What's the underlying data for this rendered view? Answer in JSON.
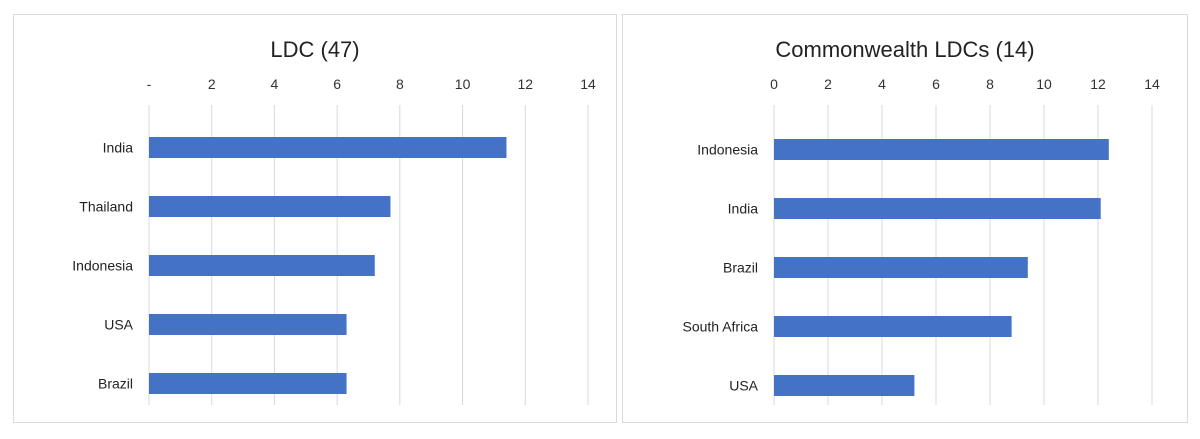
{
  "chart_data": [
    {
      "type": "bar",
      "orientation": "horizontal",
      "title": "LDC (47)",
      "categories": [
        "India",
        "Thailand",
        "Indonesia",
        "USA",
        "Brazil"
      ],
      "values": [
        11.4,
        7.7,
        7.2,
        6.3,
        6.3
      ],
      "xlim": [
        0,
        14
      ],
      "xticks": [
        0,
        2,
        4,
        6,
        8,
        10,
        12,
        14
      ],
      "xtick_labels": [
        "-",
        "2",
        "4",
        "6",
        "8",
        "10",
        "12",
        "14"
      ],
      "axis_position": "top",
      "grid": true,
      "bar_color": "#4472c4"
    },
    {
      "type": "bar",
      "orientation": "horizontal",
      "title": "Commonwealth LDCs (14)",
      "categories": [
        "Indonesia",
        "India",
        "Brazil",
        "South Africa",
        "USA"
      ],
      "values": [
        12.4,
        12.1,
        9.4,
        8.8,
        5.2
      ],
      "xlim": [
        0,
        14
      ],
      "xticks": [
        0,
        2,
        4,
        6,
        8,
        10,
        12,
        14
      ],
      "xtick_labels": [
        "0",
        "2",
        "4",
        "6",
        "8",
        "10",
        "12",
        "14"
      ],
      "axis_position": "top",
      "grid": true,
      "bar_color": "#4472c4"
    }
  ]
}
